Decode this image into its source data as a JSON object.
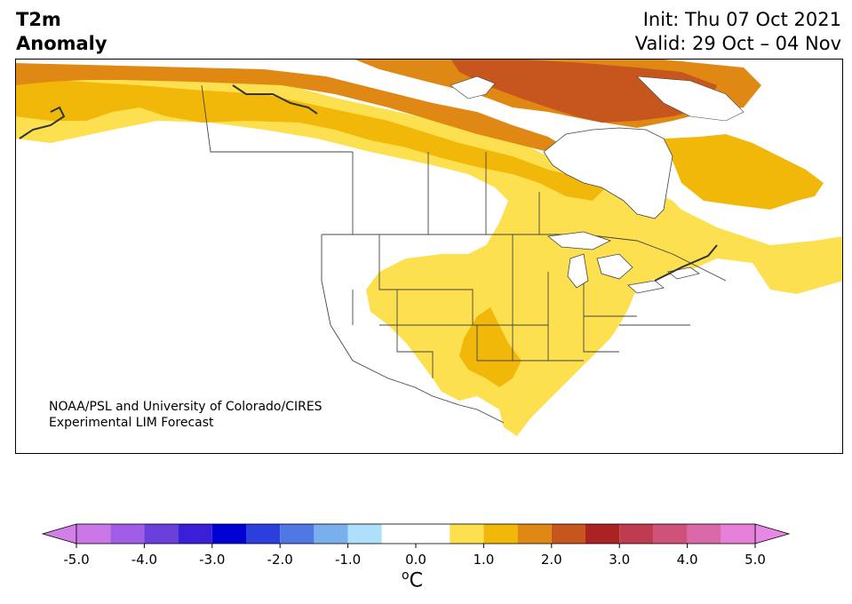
{
  "title": {
    "line1": "T2m",
    "line2": "Anomaly"
  },
  "subtitle": {
    "init": "Init: Thu 07 Oct 2021",
    "valid": "Valid: 29 Oct – 04 Nov"
  },
  "credit": {
    "line1": "NOAA/PSL and University of Colorado/CIRES",
    "line2": "Experimental LIM Forecast"
  },
  "colorbar": {
    "unit_sup": "o",
    "unit": "C",
    "ticks": [
      "-5.0",
      "-4.0",
      "-3.0",
      "-2.0",
      "-1.0",
      "0.0",
      "1.0",
      "2.0",
      "3.0",
      "4.0",
      "5.0"
    ],
    "tick_values": [
      -5,
      -4,
      -3,
      -2,
      -1,
      0,
      1,
      2,
      3,
      4,
      5
    ],
    "bins": [
      {
        "range": [
          -5.0,
          -4.5
        ],
        "color": "#cc77e8"
      },
      {
        "range": [
          -4.5,
          -4.0
        ],
        "color": "#a25de6"
      },
      {
        "range": [
          -4.0,
          -3.5
        ],
        "color": "#6a3fdc"
      },
      {
        "range": [
          -3.5,
          -3.0
        ],
        "color": "#3a1fd6"
      },
      {
        "range": [
          -3.0,
          -2.5
        ],
        "color": "#0000d2"
      },
      {
        "range": [
          -2.5,
          -2.0
        ],
        "color": "#2a3fdc"
      },
      {
        "range": [
          -2.0,
          -1.5
        ],
        "color": "#4f78e4"
      },
      {
        "range": [
          -1.5,
          -1.0
        ],
        "color": "#78b0ee"
      },
      {
        "range": [
          -1.0,
          -0.5
        ],
        "color": "#ade0fa"
      },
      {
        "range": [
          -0.5,
          0.0
        ],
        "color": "#ffffff"
      },
      {
        "range": [
          0.0,
          0.5
        ],
        "color": "#ffffff"
      },
      {
        "range": [
          0.5,
          1.0
        ],
        "color": "#fde04f"
      },
      {
        "range": [
          1.0,
          1.5
        ],
        "color": "#f1b80a"
      },
      {
        "range": [
          1.5,
          2.0
        ],
        "color": "#df8914"
      },
      {
        "range": [
          2.0,
          2.5
        ],
        "color": "#c6561e"
      },
      {
        "range": [
          2.5,
          3.0
        ],
        "color": "#ac2222"
      },
      {
        "range": [
          3.0,
          3.5
        ],
        "color": "#bf3b4f"
      },
      {
        "range": [
          3.5,
          4.0
        ],
        "color": "#cf527a"
      },
      {
        "range": [
          4.0,
          4.5
        ],
        "color": "#da69a9"
      },
      {
        "range": [
          4.5,
          5.0
        ],
        "color": "#e57fd8"
      }
    ],
    "under_color": "#d280e8",
    "over_color": "#e888e6"
  },
  "map": {
    "region": "North America",
    "variable": "2m temperature anomaly",
    "background_color": "#ffffff",
    "border_color": "#444444"
  }
}
